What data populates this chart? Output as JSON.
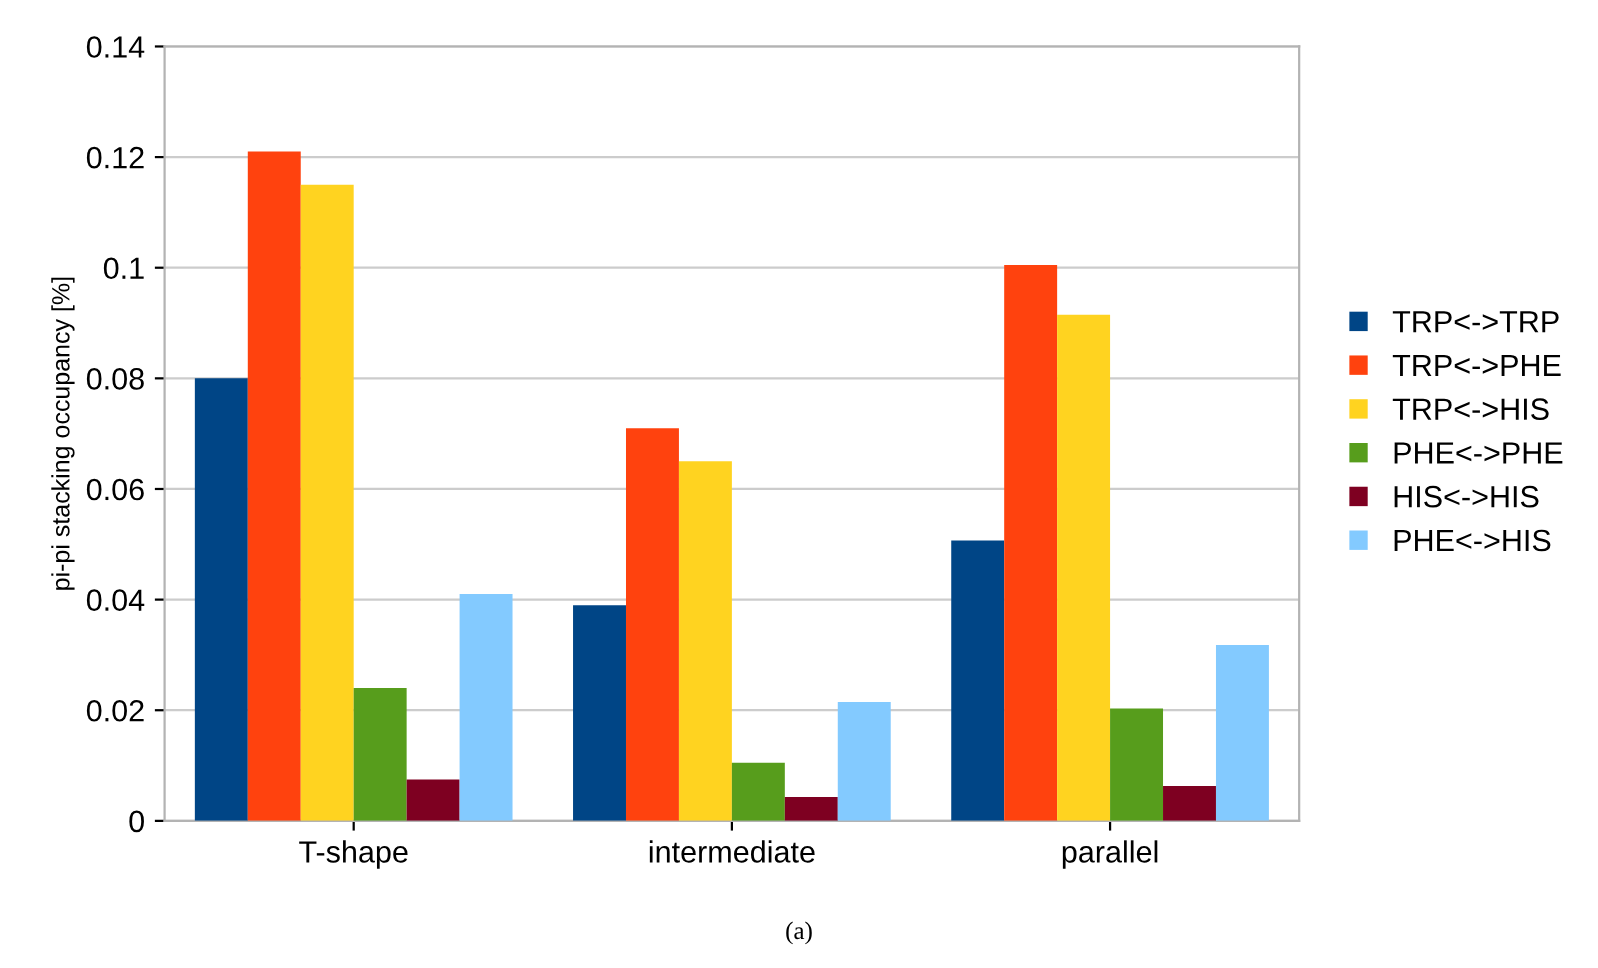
{
  "chart_data": {
    "type": "bar",
    "ylabel": "pi-pi stacking occupancy [%]",
    "categories": [
      "T-shape",
      "intermediate",
      "parallel"
    ],
    "series": [
      {
        "name": "TRP<->TRP",
        "color": "#004586",
        "values": [
          0.08,
          0.039,
          0.0507
        ]
      },
      {
        "name": "TRP<->PHE",
        "color": "#ff420e",
        "values": [
          0.121,
          0.071,
          0.1005
        ]
      },
      {
        "name": "TRP<->HIS",
        "color": "#ffd320",
        "values": [
          0.115,
          0.065,
          0.0915
        ]
      },
      {
        "name": "PHE<->PHE",
        "color": "#579d1c",
        "values": [
          0.024,
          0.0105,
          0.0203
        ]
      },
      {
        "name": "HIS<->HIS",
        "color": "#7e0021",
        "values": [
          0.0075,
          0.0043,
          0.0063
        ]
      },
      {
        "name": "PHE<->HIS",
        "color": "#83caff",
        "values": [
          0.041,
          0.0215,
          0.0318
        ]
      }
    ],
    "ylim": [
      0,
      0.14
    ],
    "yticks": [
      0,
      0.02,
      0.04,
      0.06,
      0.08,
      0.1,
      0.12,
      0.14
    ],
    "grid": "y",
    "legend": "right",
    "annotations": [
      "(a)"
    ]
  }
}
